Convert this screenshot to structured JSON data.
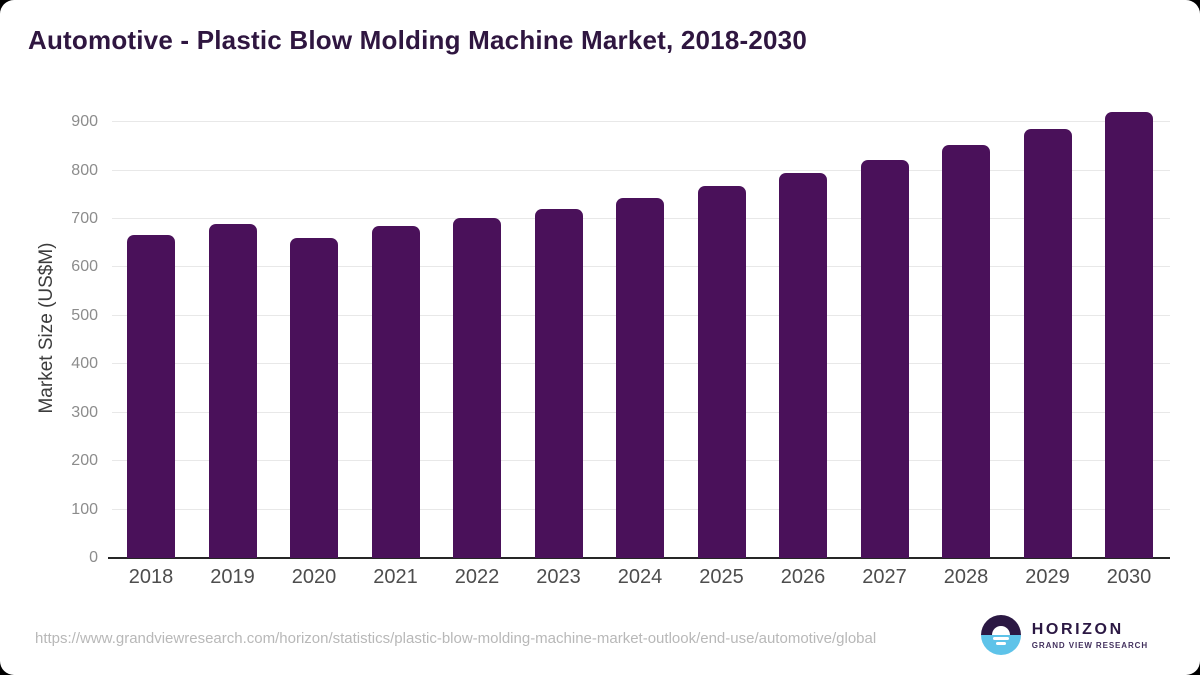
{
  "page": {
    "outer_background": "#000000",
    "card_background": "#ffffff"
  },
  "header": {
    "title": "Automotive - Plastic Blow Molding Machine Market, 2018-2030"
  },
  "chart_data": {
    "type": "bar",
    "title": "Automotive - Plastic Blow Molding Machine Market, 2018-2030",
    "categories": [
      "2018",
      "2019",
      "2020",
      "2021",
      "2022",
      "2023",
      "2024",
      "2025",
      "2026",
      "2027",
      "2028",
      "2029",
      "2030"
    ],
    "values": [
      667,
      690,
      661,
      685,
      702,
      720,
      743,
      768,
      795,
      821,
      853,
      886,
      922
    ],
    "xlabel": "",
    "ylabel": "Market Size (US$M)",
    "ylim": [
      0,
      950
    ],
    "ytick_step": 100,
    "ytick_labels": [
      "0",
      "100",
      "200",
      "300",
      "400",
      "500",
      "600",
      "700",
      "800",
      "900"
    ],
    "grid": true,
    "legend": false,
    "bar_color": "#4a115a",
    "gridline_color": "#e8e8e8",
    "axis_color": "#262626"
  },
  "footer": {
    "source_url": "https://www.grandviewresearch.com/horizon/statistics/plastic-blow-molding-machine-market-outlook/end-use/automotive/global",
    "logo": {
      "name": "HORIZON",
      "subtitle": "GRAND VIEW RESEARCH",
      "purple": "#2b1843",
      "blue": "#5ec3e9"
    }
  }
}
